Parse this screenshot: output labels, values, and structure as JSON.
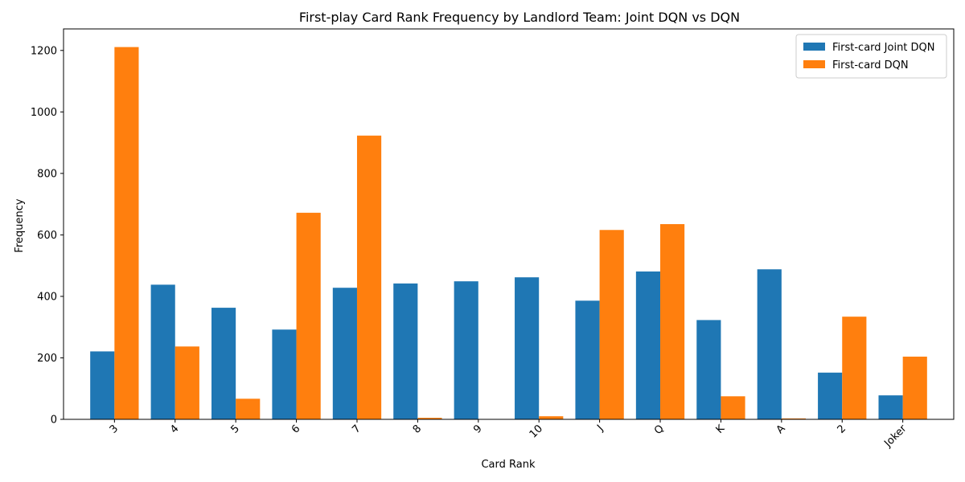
{
  "chart_data": {
    "type": "bar",
    "title": "First-play Card Rank Frequency by Landlord Team: Joint DQN vs DQN",
    "xlabel": "Card Rank",
    "ylabel": "Frequency",
    "categories": [
      "3",
      "4",
      "5",
      "6",
      "7",
      "8",
      "9",
      "10",
      "J",
      "Q",
      "K",
      "A",
      "2",
      "Joker"
    ],
    "series": [
      {
        "name": "First-card Joint DQN",
        "color": "#1f77b4",
        "values": [
          221,
          438,
          363,
          292,
          428,
          442,
          449,
          462,
          386,
          481,
          323,
          488,
          152,
          78
        ]
      },
      {
        "name": "First-card DQN",
        "color": "#ff7f0e",
        "values": [
          1211,
          237,
          67,
          672,
          923,
          5,
          0,
          10,
          616,
          635,
          75,
          3,
          334,
          204
        ]
      }
    ],
    "ylim": [
      0,
      1270
    ],
    "yticks": [
      0,
      200,
      400,
      600,
      800,
      1000,
      1200
    ],
    "legend_position": "top-right",
    "grid": false
  }
}
